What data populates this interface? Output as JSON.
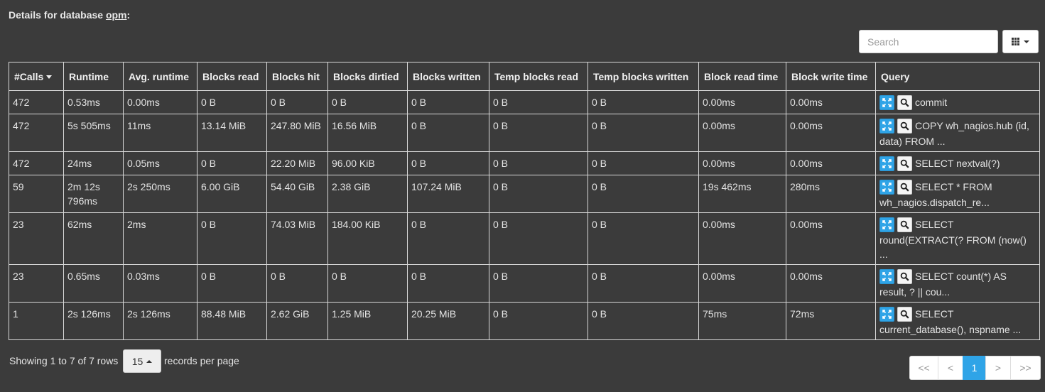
{
  "header": {
    "prefix": "Details for database ",
    "db_name": "opm",
    "suffix": ":"
  },
  "search": {
    "placeholder": "Search"
  },
  "columns": [
    "#Calls",
    "Runtime",
    "Avg. runtime",
    "Blocks read",
    "Blocks hit",
    "Blocks dirtied",
    "Blocks written",
    "Temp blocks read",
    "Temp blocks written",
    "Block read time",
    "Block write time",
    "Query"
  ],
  "rows": [
    [
      "472",
      "0.53ms",
      "0.00ms",
      "0 B",
      "0 B",
      "0 B",
      "0 B",
      "0 B",
      "0 B",
      "0.00ms",
      "0.00ms",
      "commit"
    ],
    [
      "472",
      "5s 505ms",
      "11ms",
      "13.14 MiB",
      "247.80 MiB",
      "16.56 MiB",
      "0 B",
      "0 B",
      "0 B",
      "0.00ms",
      "0.00ms",
      "COPY wh_nagios.hub (id, data) FROM ..."
    ],
    [
      "472",
      "24ms",
      "0.05ms",
      "0 B",
      "22.20 MiB",
      "96.00 KiB",
      "0 B",
      "0 B",
      "0 B",
      "0.00ms",
      "0.00ms",
      "SELECT nextval(?)"
    ],
    [
      "59",
      "2m 12s 796ms",
      "2s 250ms",
      "6.00 GiB",
      "54.40 GiB",
      "2.38 GiB",
      "107.24 MiB",
      "0 B",
      "0 B",
      "19s 462ms",
      "280ms",
      "SELECT * FROM wh_nagios.dispatch_re..."
    ],
    [
      "23",
      "62ms",
      "2ms",
      "0 B",
      "74.03 MiB",
      "184.00 KiB",
      "0 B",
      "0 B",
      "0 B",
      "0.00ms",
      "0.00ms",
      "SELECT round(EXTRACT(? FROM (now() ..."
    ],
    [
      "23",
      "0.65ms",
      "0.03ms",
      "0 B",
      "0 B",
      "0 B",
      "0 B",
      "0 B",
      "0 B",
      "0.00ms",
      "0.00ms",
      "SELECT count(*) AS result, ? || cou..."
    ],
    [
      "1",
      "2s 126ms",
      "2s 126ms",
      "88.48 MiB",
      "2.62 GiB",
      "1.25 MiB",
      "20.25 MiB",
      "0 B",
      "0 B",
      "75ms",
      "72ms",
      "SELECT current_database(), nspname ..."
    ]
  ],
  "footer": {
    "showing": "Showing 1 to 7 of 7 rows",
    "per_page_value": "15",
    "per_page_suffix": "records per page"
  },
  "pagination": {
    "first": "<<",
    "prev": "<",
    "current": "1",
    "next": ">",
    "last": ">>"
  },
  "icons": {
    "columns_toggle": "grid-icon",
    "expand": "expand-icon",
    "zoom": "magnifier-icon"
  },
  "colors": {
    "background": "#3b3b3b",
    "accent": "#2fa4e7",
    "border": "#d8d8d8"
  }
}
